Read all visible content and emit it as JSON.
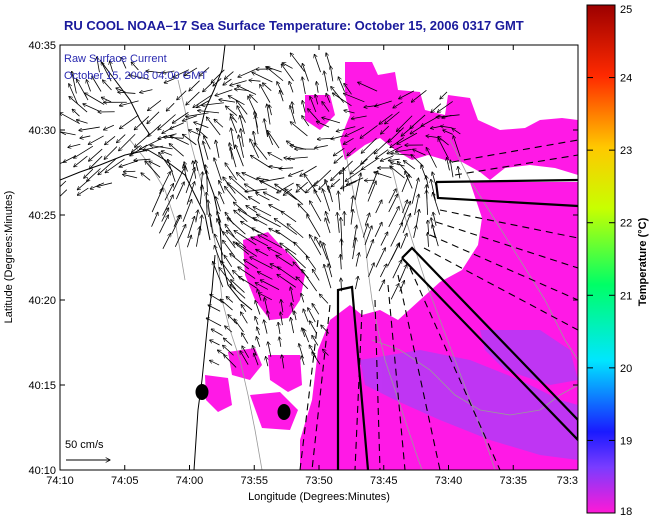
{
  "title": "RU COOL  NOAA–17  Sea Surface Temperature:  October 15, 2006 0317 GMT",
  "annotation": {
    "line1": "Raw Surface Current",
    "line2": "October 15, 2006 04:00 GMT"
  },
  "axes": {
    "xlabel": "Longitude (Degrees:Minutes)",
    "ylabel": "Latitude (Degrees:Minutes)",
    "x_ticks": [
      "74:10",
      "74:05",
      "74:00",
      "73:55",
      "73:50",
      "73:45",
      "73:40",
      "73:35",
      "73:3"
    ],
    "y_ticks": [
      "40:35",
      "40:30",
      "40:25",
      "40:20",
      "40:15",
      "40:10"
    ]
  },
  "colorbar": {
    "label": "Temperature (°C)",
    "ticks": [
      "25",
      "24",
      "23",
      "22",
      "21",
      "20",
      "19",
      "18"
    ],
    "min": 18,
    "max": 25
  },
  "scale_arrow": {
    "label": "50 cm/s"
  },
  "colors": {
    "land": "#ffffff",
    "sst_warm": "#ff19e6",
    "sst_cool": "#8c4dff",
    "title_text": "#1a1a9c",
    "annotation_text": "#2a2ab0"
  },
  "icons": [
    "buoy-marker-icon",
    "scale-arrow-icon"
  ]
}
